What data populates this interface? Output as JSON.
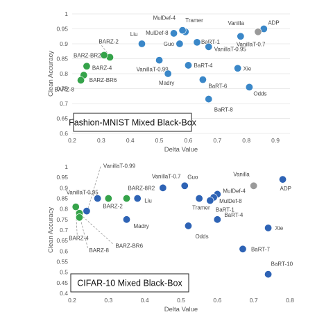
{
  "colors": {
    "blue": "#3a87c8",
    "dark_blue": "#2e63b5",
    "green": "#35a34a",
    "gray": "#9a9a9a",
    "grid": "#e4e4e4"
  },
  "chart_data": [
    {
      "type": "scatter",
      "title": "Fashion-MNIST Mixed Black-Box",
      "xlabel": "Delta Value",
      "ylabel": "Clean Accuracy",
      "xlim": [
        0.2,
        0.95
      ],
      "ylim": [
        0.6,
        1.0
      ],
      "xticks": [
        0.2,
        0.3,
        0.4,
        0.5,
        0.6,
        0.7,
        0.8,
        0.9
      ],
      "yticks": [
        0.6,
        0.65,
        0.7,
        0.75,
        0.8,
        0.85,
        0.9,
        0.95,
        1.0
      ],
      "grid": "horizontal",
      "points": [
        {
          "label": "ADP",
          "x": 0.86,
          "y": 0.95,
          "color": "blue"
        },
        {
          "label": "Vanilla",
          "x": 0.84,
          "y": 0.94,
          "color": "gray"
        },
        {
          "label": "VanillaT-0.7",
          "x": 0.78,
          "y": 0.925,
          "color": "blue"
        },
        {
          "label": "Tramer",
          "x": 0.59,
          "y": 0.94,
          "color": "blue"
        },
        {
          "label": "MulDef-4",
          "x": 0.58,
          "y": 0.945,
          "color": "blue"
        },
        {
          "label": "MulDef-8",
          "x": 0.55,
          "y": 0.935,
          "color": "blue"
        },
        {
          "label": "BaRT-1",
          "x": 0.63,
          "y": 0.905,
          "color": "blue"
        },
        {
          "label": "Guo",
          "x": 0.57,
          "y": 0.9,
          "color": "blue"
        },
        {
          "label": "VanillaT-0.95",
          "x": 0.67,
          "y": 0.89,
          "color": "blue"
        },
        {
          "label": "Liu",
          "x": 0.44,
          "y": 0.9,
          "color": "blue"
        },
        {
          "label": "VanillaT-0.99",
          "x": 0.5,
          "y": 0.845,
          "color": "blue"
        },
        {
          "label": "BaRT-4",
          "x": 0.6,
          "y": 0.828,
          "color": "blue"
        },
        {
          "label": "Xie",
          "x": 0.77,
          "y": 0.818,
          "color": "blue"
        },
        {
          "label": "Madry",
          "x": 0.53,
          "y": 0.8,
          "color": "blue"
        },
        {
          "label": "BaRT-6",
          "x": 0.65,
          "y": 0.78,
          "color": "blue"
        },
        {
          "label": "Odds",
          "x": 0.81,
          "y": 0.755,
          "color": "blue"
        },
        {
          "label": "BaRT-8",
          "x": 0.67,
          "y": 0.715,
          "color": "blue"
        },
        {
          "label": "BARZ-2",
          "x": 0.33,
          "y": 0.855,
          "color": "green"
        },
        {
          "label": "BARZ-BR2",
          "x": 0.31,
          "y": 0.862,
          "color": "green"
        },
        {
          "label": "BARZ-4",
          "x": 0.25,
          "y": 0.825,
          "color": "green"
        },
        {
          "label": "BARZ-BR6",
          "x": 0.24,
          "y": 0.795,
          "color": "green"
        },
        {
          "label": "BARZ-8",
          "x": 0.23,
          "y": 0.778,
          "color": "green"
        }
      ]
    },
    {
      "type": "scatter",
      "title": "CIFAR-10 Mixed Black-Box",
      "xlabel": "Delta Value",
      "ylabel": "Clean Accuracy",
      "xlim": [
        0.2,
        0.8
      ],
      "ylim": [
        0.4,
        1.0
      ],
      "xticks": [
        0.2,
        0.3,
        0.4,
        0.5,
        0.6,
        0.7,
        0.8
      ],
      "yticks": [
        0.4,
        0.45,
        0.5,
        0.55,
        0.6,
        0.65,
        0.7,
        0.75,
        0.8,
        0.85,
        0.9,
        0.95,
        1.0
      ],
      "grid": "none",
      "points": [
        {
          "label": "ADP",
          "x": 0.78,
          "y": 0.94,
          "color": "dark_blue"
        },
        {
          "label": "Vanilla",
          "x": 0.7,
          "y": 0.91,
          "color": "gray"
        },
        {
          "label": "VanillaT-0.7",
          "x": 0.45,
          "y": 0.9,
          "color": "dark_blue"
        },
        {
          "label": "Guo",
          "x": 0.51,
          "y": 0.91,
          "color": "dark_blue"
        },
        {
          "label": "MulDef-4",
          "x": 0.6,
          "y": 0.87,
          "color": "dark_blue"
        },
        {
          "label": "MulDef-8",
          "x": 0.59,
          "y": 0.855,
          "color": "dark_blue"
        },
        {
          "label": "BaRT-1",
          "x": 0.58,
          "y": 0.84,
          "color": "dark_blue"
        },
        {
          "label": "Tramer",
          "x": 0.55,
          "y": 0.85,
          "color": "dark_blue"
        },
        {
          "label": "Liu",
          "x": 0.38,
          "y": 0.85,
          "color": "dark_blue"
        },
        {
          "label": "VanillaT-0.95",
          "x": 0.27,
          "y": 0.85,
          "color": "dark_blue"
        },
        {
          "label": "VanillaT-0.99",
          "x": 0.24,
          "y": 0.79,
          "color": "dark_blue"
        },
        {
          "label": "BaRT-4",
          "x": 0.6,
          "y": 0.75,
          "color": "dark_blue"
        },
        {
          "label": "Xie",
          "x": 0.74,
          "y": 0.71,
          "color": "dark_blue"
        },
        {
          "label": "Madry",
          "x": 0.35,
          "y": 0.75,
          "color": "dark_blue"
        },
        {
          "label": "Odds",
          "x": 0.52,
          "y": 0.72,
          "color": "dark_blue"
        },
        {
          "label": "BaRT-7",
          "x": 0.67,
          "y": 0.61,
          "color": "dark_blue"
        },
        {
          "label": "BaRT-10",
          "x": 0.74,
          "y": 0.49,
          "color": "dark_blue"
        },
        {
          "label": "BARZ-2",
          "x": 0.3,
          "y": 0.85,
          "color": "green"
        },
        {
          "label": "BARZ-8R2",
          "x": 0.35,
          "y": 0.85,
          "color": "green"
        },
        {
          "label": "BARZ-4",
          "x": 0.21,
          "y": 0.81,
          "color": "green"
        },
        {
          "label": "BARZ-BR6",
          "x": 0.22,
          "y": 0.78,
          "color": "green"
        },
        {
          "label": "BARZ-8",
          "x": 0.22,
          "y": 0.76,
          "color": "green"
        }
      ]
    }
  ]
}
